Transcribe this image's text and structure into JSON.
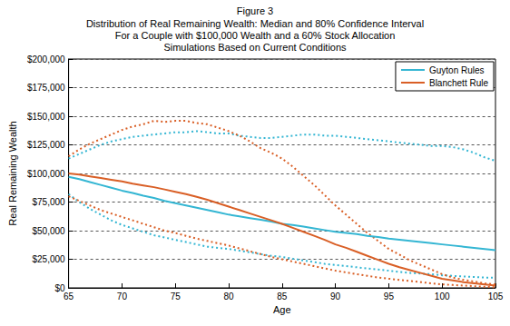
{
  "chart_data": {
    "type": "line",
    "title": "Figure 3",
    "subtitle": "Distribution of Real Remaining Wealth: Median and 80% Confidence Interval\nFor a Couple with $100,000 Wealth and a 60% Stock Allocation\nSimulations Based on Current Conditions",
    "x_label": "Age",
    "y_label": "Real Remaining Wealth",
    "x": [
      65,
      66,
      67,
      68,
      69,
      70,
      71,
      72,
      73,
      74,
      75,
      76,
      77,
      78,
      79,
      80,
      81,
      82,
      83,
      84,
      85,
      86,
      87,
      88,
      89,
      90,
      91,
      92,
      93,
      94,
      95,
      96,
      97,
      98,
      99,
      100,
      101,
      102,
      103,
      104,
      105
    ],
    "xlim": [
      65,
      105
    ],
    "xticks": [
      65,
      70,
      75,
      80,
      85,
      90,
      95,
      100,
      105
    ],
    "ylim": [
      0,
      200000
    ],
    "yticks": [
      {
        "value": 0,
        "label": "$0"
      },
      {
        "value": 25000,
        "label": "$25,000"
      },
      {
        "value": 50000,
        "label": "$50,000"
      },
      {
        "value": 75000,
        "label": "$75,000"
      },
      {
        "value": 100000,
        "label": "$100,000"
      },
      {
        "value": 125000,
        "label": "$125,000"
      },
      {
        "value": 150000,
        "label": "$150,000"
      },
      {
        "value": 175000,
        "label": "$175,000"
      },
      {
        "value": 200000,
        "label": "$200,000"
      }
    ],
    "grid": true,
    "legend": "top-right",
    "series": [
      {
        "name": "Guyton Rules",
        "color": "#34b6d3",
        "values": [
          97000,
          95000,
          92500,
          90000,
          87500,
          85000,
          83000,
          80500,
          78500,
          76000,
          74000,
          72000,
          70000,
          68000,
          66000,
          64000,
          62500,
          61000,
          59500,
          58000,
          56000,
          55000,
          53500,
          52000,
          50500,
          49000,
          48000,
          47000,
          45500,
          44500,
          43000,
          42000,
          41000,
          40000,
          39000,
          38000,
          37000,
          36000,
          35000,
          34000,
          33000
        ],
        "upper": [
          113000,
          117000,
          121000,
          125000,
          128000,
          130000,
          132000,
          133000,
          134000,
          135000,
          136000,
          136000,
          137000,
          136000,
          135000,
          135000,
          133000,
          132000,
          131000,
          131000,
          132000,
          133000,
          134000,
          134000,
          133000,
          133000,
          132000,
          131000,
          130000,
          129000,
          128000,
          127000,
          126000,
          125000,
          124000,
          124000,
          123000,
          121000,
          118000,
          114000,
          111000
        ],
        "lower": [
          82000,
          75000,
          69000,
          64000,
          59000,
          55000,
          52000,
          49000,
          46000,
          44000,
          42000,
          40000,
          38000,
          36000,
          35000,
          34000,
          32500,
          31000,
          29500,
          28000,
          27000,
          25500,
          24000,
          22500,
          21000,
          20000,
          19000,
          18000,
          17000,
          16000,
          15000,
          14000,
          13000,
          12500,
          12000,
          11000,
          10500,
          10000,
          9500,
          9000,
          9000
        ]
      },
      {
        "name": "Blanchett Rule",
        "color": "#d95f26",
        "values": [
          100000,
          99000,
          97500,
          96000,
          94500,
          93000,
          91000,
          89500,
          88000,
          86000,
          84000,
          82000,
          79500,
          77000,
          74000,
          71000,
          68000,
          65000,
          62000,
          59000,
          56000,
          52500,
          49000,
          45500,
          42000,
          38000,
          35000,
          31500,
          28000,
          24500,
          21000,
          18000,
          15500,
          13000,
          10500,
          8000,
          6500,
          5000,
          4000,
          3000,
          2000
        ],
        "upper": [
          115000,
          121000,
          126000,
          130000,
          134000,
          138000,
          141000,
          143000,
          146000,
          145000,
          146000,
          146000,
          144000,
          143000,
          140000,
          137000,
          133000,
          128000,
          122000,
          118000,
          113000,
          106000,
          98000,
          90000,
          81000,
          72000,
          64000,
          56000,
          48000,
          41000,
          34000,
          29000,
          24000,
          20000,
          16000,
          12000,
          9000,
          7000,
          5500,
          4000,
          3000
        ],
        "lower": [
          80000,
          76000,
          72000,
          68000,
          65000,
          62000,
          59000,
          56000,
          53000,
          50000,
          48000,
          45500,
          43000,
          41000,
          39000,
          37000,
          34500,
          32000,
          29500,
          27000,
          25000,
          23000,
          21000,
          19000,
          17000,
          15000,
          13500,
          12000,
          10500,
          9000,
          8000,
          7000,
          6000,
          5000,
          4000,
          3000,
          2500,
          2000,
          1500,
          1000,
          500
        ]
      }
    ]
  }
}
